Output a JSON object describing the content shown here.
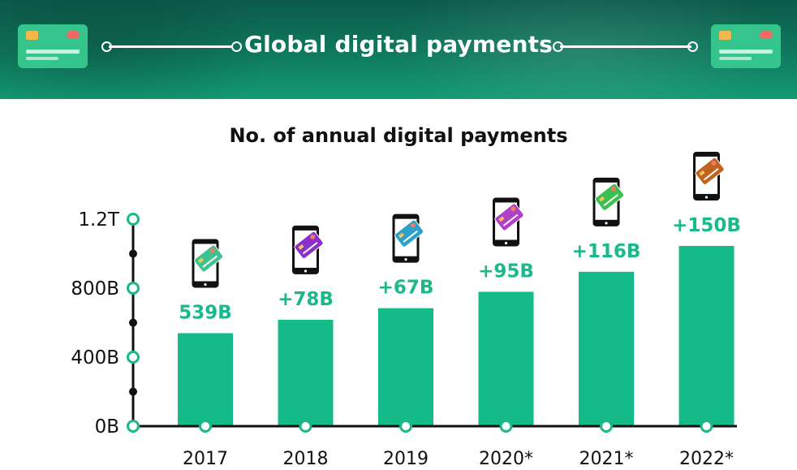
{
  "header": {
    "title": "Global digital payments"
  },
  "colors": {
    "bar": "#14ba88",
    "value_label": "#1ab98c",
    "axis": "#111111",
    "marker": "#1ab98c",
    "card_colors": [
      "#3ec28f",
      "#8a30c8",
      "#2ba0c8",
      "#b040c8",
      "#3cc050",
      "#c0631e"
    ]
  },
  "chart_data": {
    "type": "bar",
    "title": "No. of annual digital payments",
    "categories": [
      "2017",
      "2018",
      "2019",
      "2020*",
      "2021*",
      "2022*"
    ],
    "values": [
      539,
      617,
      684,
      779,
      895,
      1045
    ],
    "value_labels": [
      "539B",
      "+78B",
      "+67B",
      "+95B",
      "+116B",
      "+150B"
    ],
    "unit": "billion",
    "ylim": [
      0,
      1200
    ],
    "yticks": [
      0,
      400,
      800,
      1200
    ],
    "ytick_labels": [
      "0B",
      "400B",
      "800B",
      "1.2T"
    ],
    "minor_yticks": [
      200,
      600,
      1000
    ],
    "icons": [
      "phone-card-icon",
      "phone-card-icon",
      "phone-card-icon",
      "phone-card-icon",
      "phone-card-icon",
      "phone-card-icon"
    ],
    "grid": false,
    "xlabel": "",
    "ylabel": ""
  }
}
